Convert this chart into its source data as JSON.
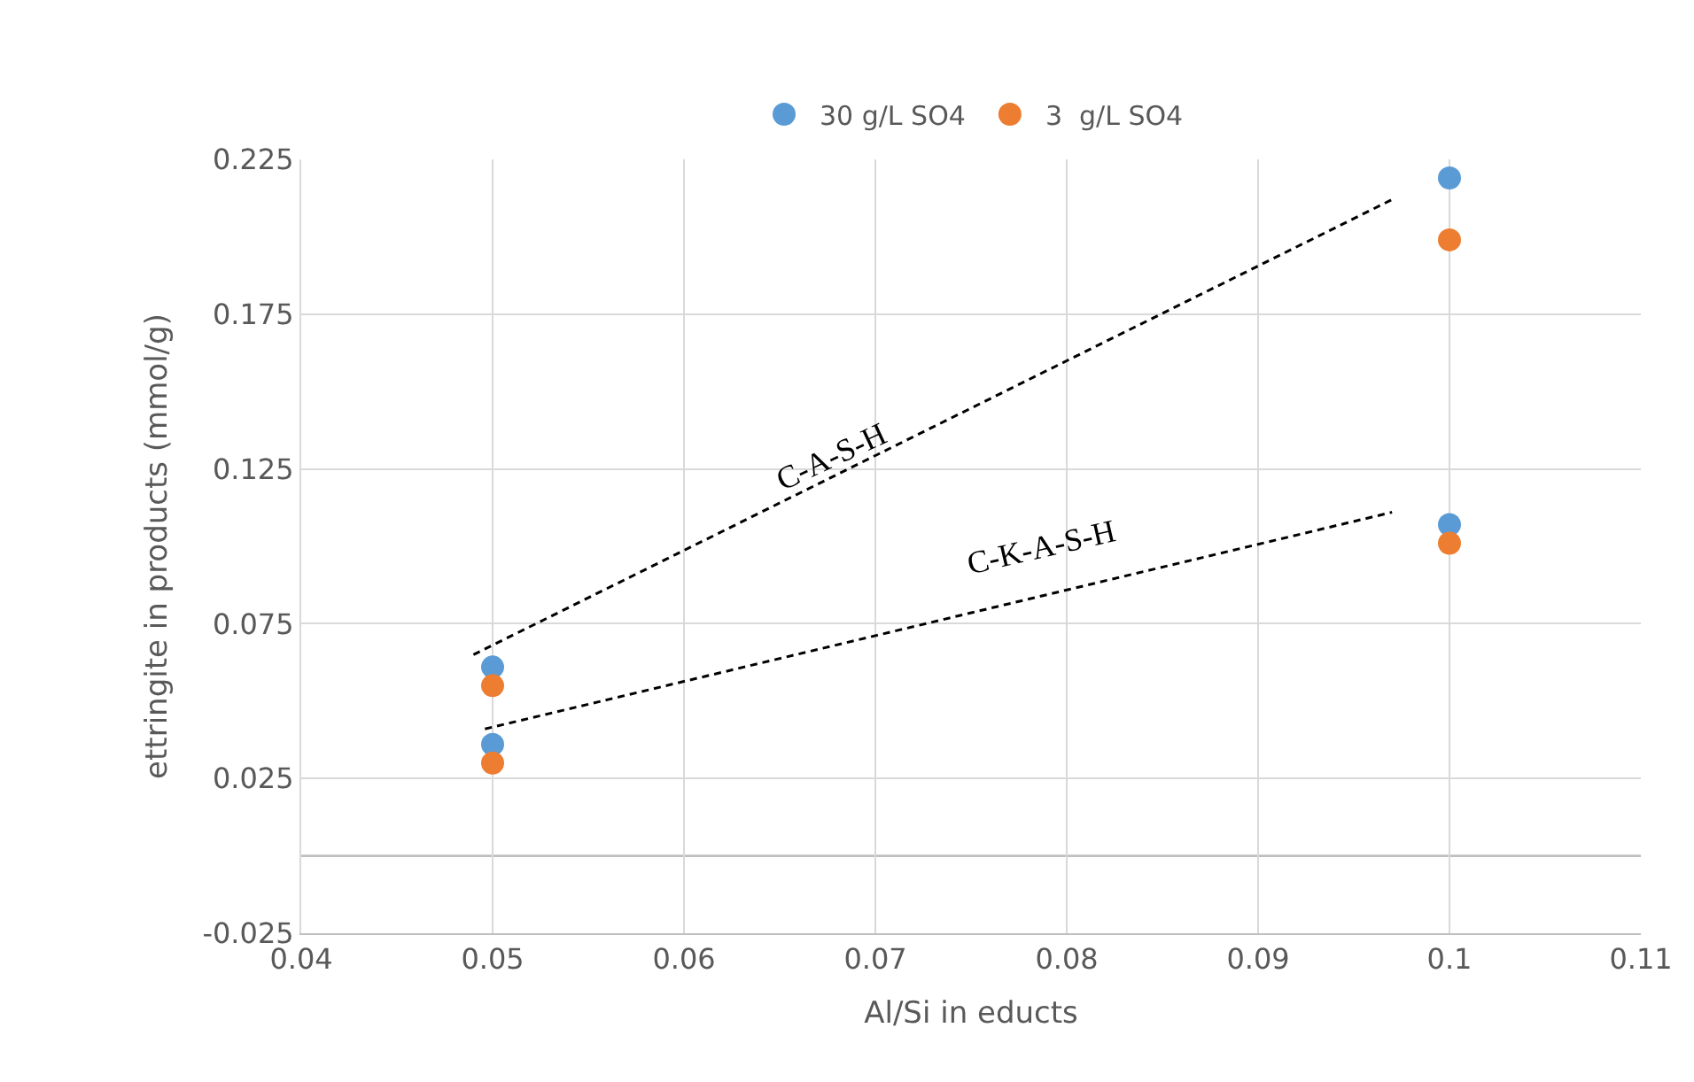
{
  "chart_data": {
    "type": "scatter",
    "xlabel": "Al/Si in educts",
    "ylabel": "ettringite in products (mmol/g)",
    "xlim": [
      0.04,
      0.11
    ],
    "xticks": [
      0.04,
      0.05,
      0.06,
      0.07,
      0.08,
      0.09,
      0.1,
      0.11
    ],
    "ylim": [
      -0.025,
      0.225
    ],
    "yticks": [
      -0.025,
      0.025,
      0.075,
      0.125,
      0.175,
      0.225
    ],
    "grid": true,
    "legend": "top",
    "marker": "circle",
    "series": [
      {
        "name": "30 g/L SO4",
        "color": "#5b9bd5",
        "x": [
          0.05,
          0.05,
          0.1,
          0.1
        ],
        "values": [
          0.061,
          0.036,
          0.219,
          0.107
        ]
      },
      {
        "name": "3  g/L SO4",
        "color": "#ed7d31",
        "x": [
          0.05,
          0.05,
          0.1,
          0.1
        ],
        "values": [
          0.055,
          0.03,
          0.199,
          0.101
        ]
      },
      {
        "type": "line",
        "color": "#000000",
        "line_style": "dashed",
        "marker": "none",
        "x": [
          0.049,
          0.097
        ],
        "values": [
          0.065,
          0.212
        ]
      },
      {
        "type": "line",
        "color": "#000000",
        "line_style": "dashed",
        "marker": "none",
        "x": [
          0.0496,
          0.097
        ],
        "values": [
          0.041,
          0.111
        ]
      }
    ],
    "ref_lines": [
      {
        "axis": "y",
        "value": 0,
        "color": "#bfbfbf"
      }
    ],
    "annotations": [
      "C-A-S-H",
      "C-K-A-S-H"
    ]
  }
}
